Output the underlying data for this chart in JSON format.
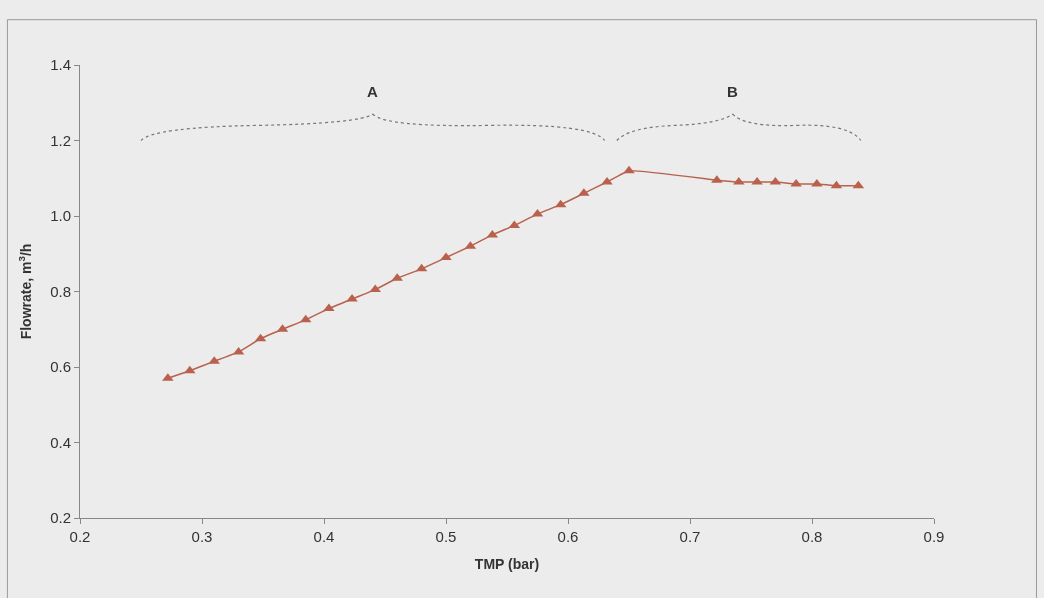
{
  "chart_data": {
    "type": "line",
    "xlabel": "TMP (bar)",
    "ylabel": "Flowrate, m$^{3}$/h",
    "x": [
      0.272,
      0.29,
      0.31,
      0.33,
      0.348,
      0.366,
      0.385,
      0.404,
      0.423,
      0.442,
      0.46,
      0.48,
      0.5,
      0.52,
      0.538,
      0.556,
      0.575,
      0.594,
      0.613,
      0.632,
      0.65,
      0.722,
      0.74,
      0.755,
      0.77,
      0.787,
      0.804,
      0.82,
      0.838
    ],
    "series": [
      {
        "color": "#b9614c",
        "values": [
          0.57,
          0.59,
          0.615,
          0.64,
          0.675,
          0.7,
          0.725,
          0.755,
          0.78,
          0.805,
          0.835,
          0.86,
          0.89,
          0.92,
          0.95,
          0.975,
          1.005,
          1.03,
          1.06,
          1.09,
          1.12,
          1.095,
          1.09,
          1.09,
          1.09,
          1.085,
          1.085,
          1.08,
          1.08
        ]
      }
    ],
    "xlim": [
      0.2,
      0.9
    ],
    "xticks": [
      0.2,
      0.3,
      0.4,
      0.5,
      0.6,
      0.7,
      0.8,
      0.9
    ],
    "ylim": [
      0.2,
      1.4
    ],
    "yticks": [
      0.2,
      0.4,
      0.6,
      0.8,
      {
        "value": 1.0,
        "label": "1.0"
      },
      1.2,
      1.4
    ],
    "annotations": [
      "A",
      "B"
    ],
    "marker": "triangle",
    "line_style": "solid",
    "grid": false
  }
}
